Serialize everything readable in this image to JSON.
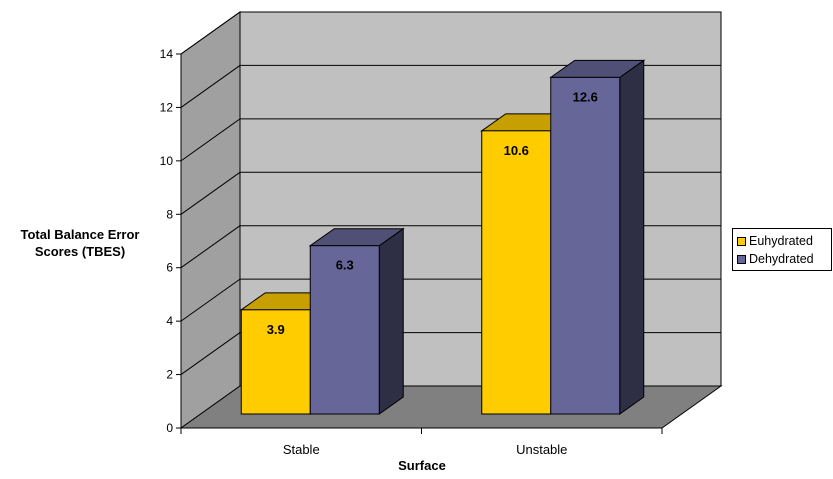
{
  "chart_data": {
    "type": "bar",
    "categories": [
      "Stable",
      "Unstable"
    ],
    "series": [
      {
        "name": "Euhydrated",
        "values": [
          3.9,
          10.6
        ],
        "color": "#FFCC00"
      },
      {
        "name": "Dehydrated",
        "values": [
          6.3,
          12.6
        ],
        "color": "#666699"
      }
    ],
    "title": "",
    "xlabel": "Surface",
    "ylabel": "Total Balance Error Scores (TBES)",
    "ylim": [
      0,
      14
    ],
    "yticks": [
      "0",
      "2",
      "4",
      "6",
      "8",
      "10",
      "12",
      "14"
    ],
    "data_labels": [
      [
        "3.9",
        "10.6"
      ],
      [
        "6.3",
        "12.6"
      ]
    ],
    "grid": true,
    "legend_position": "right",
    "style": "3d-clustered-column",
    "colors": {
      "wall": "#C0C0C0",
      "side_wall": "#A0A0A0",
      "floor": "#808080"
    }
  }
}
